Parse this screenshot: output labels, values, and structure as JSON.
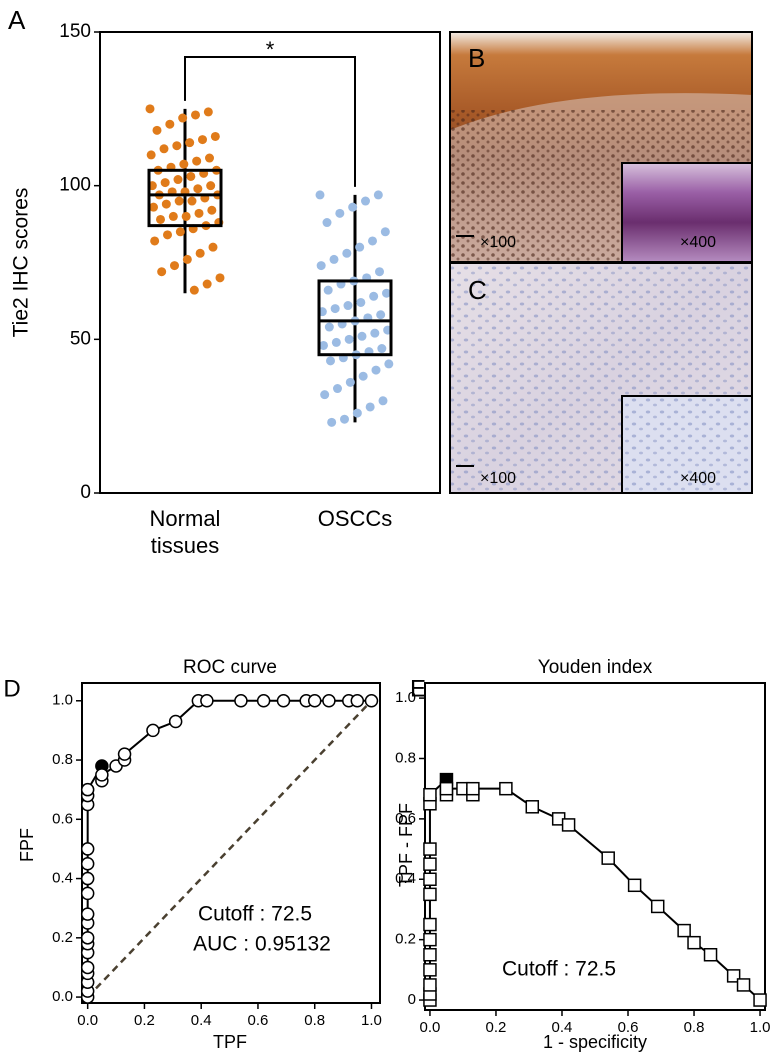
{
  "chart_data": [
    {
      "type": "box",
      "label": "A",
      "ylabel": "Tie2 IHC scores",
      "ylim": [
        0,
        150
      ],
      "yticks": [
        0,
        50,
        100,
        150
      ],
      "categories": [
        "Normal tissues",
        "OSCCs"
      ],
      "annotation": "*",
      "boxes": [
        {
          "color": "#e07b1a",
          "whislo": 65,
          "q1": 87,
          "med": 97,
          "q3": 105,
          "whishi": 125,
          "points": [
            125,
            124,
            123,
            122,
            120,
            118,
            116,
            115,
            114,
            113,
            112,
            110,
            109,
            108,
            107,
            106,
            105,
            105,
            104,
            103,
            102,
            101,
            100,
            100,
            99,
            98,
            98,
            97,
            97,
            96,
            95,
            95,
            94,
            93,
            92,
            91,
            90,
            90,
            89,
            88,
            87,
            86,
            85,
            84,
            82,
            80,
            78,
            76,
            74,
            72,
            70,
            68,
            66
          ]
        },
        {
          "color": "#9bbbe3",
          "whislo": 23,
          "q1": 45,
          "med": 56,
          "q3": 69,
          "whishi": 97,
          "points": [
            97,
            97,
            95,
            93,
            91,
            88,
            85,
            82,
            80,
            78,
            76,
            74,
            72,
            70,
            69,
            68,
            66,
            65,
            64,
            62,
            61,
            60,
            59,
            58,
            57,
            56,
            55,
            54,
            53,
            52,
            51,
            50,
            49,
            48,
            47,
            46,
            45,
            44,
            43,
            42,
            40,
            38,
            36,
            34,
            32,
            30,
            28,
            26,
            24,
            23
          ]
        }
      ]
    },
    {
      "type": "roc",
      "label": "D",
      "title": "ROC curve",
      "xlabel": "TPF",
      "ylabel": "FPF",
      "annotations": [
        "Cutoff : 72.5",
        "AUC : 0.95132"
      ],
      "marker": "circle",
      "highlight_index": 17,
      "xlim": [
        -0.02,
        1.03
      ],
      "ylim": [
        -0.02,
        1.06
      ],
      "xticks": [
        {
          "value": 0,
          "label": "0.0"
        },
        0.2,
        0.4,
        0.6,
        0.8,
        {
          "value": 1,
          "label": "1.0"
        }
      ],
      "yticks": [
        {
          "value": 0,
          "label": "0.0"
        },
        0.2,
        0.4,
        0.6,
        0.8,
        {
          "value": 1,
          "label": "1.0"
        }
      ],
      "x": [
        0,
        0,
        0,
        0,
        0,
        0,
        0,
        0,
        0,
        0,
        0,
        0,
        0,
        0,
        0,
        0,
        0,
        0.05,
        0.05,
        0.05,
        0.1,
        0.13,
        0.13,
        0.23,
        0.31,
        0.39,
        0.42,
        0.54,
        0.62,
        0.69,
        0.77,
        0.8,
        0.85,
        0.92,
        0.95,
        1
      ],
      "y": [
        0,
        0.02,
        0.05,
        0.08,
        0.1,
        0.15,
        0.18,
        0.2,
        0.25,
        0.28,
        0.35,
        0.4,
        0.45,
        0.5,
        0.65,
        0.68,
        0.7,
        0.78,
        0.73,
        0.75,
        0.78,
        0.8,
        0.82,
        0.9,
        0.93,
        1,
        1,
        1,
        1,
        1,
        1,
        1,
        1,
        1,
        1,
        1
      ]
    },
    {
      "type": "youden",
      "label": "E",
      "title": "Youden index",
      "xlabel": "1 - specificity",
      "ylabel": "TPF - FPF",
      "annotations": [
        "Cutoff : 72.5"
      ],
      "marker": "square",
      "highlight_index": 13,
      "xlim": [
        -0.015,
        1.015
      ],
      "ylim": [
        -0.033,
        1.05
      ],
      "xticks": [
        {
          "value": 0,
          "label": "0.0"
        },
        0.2,
        0.4,
        0.6,
        0.8,
        {
          "value": 1,
          "label": "1.0"
        }
      ],
      "yticks": [
        0,
        0.2,
        0.4,
        0.6,
        0.8,
        {
          "value": 1,
          "label": "1.0"
        }
      ],
      "x": [
        0,
        0,
        0,
        0,
        0,
        0,
        0,
        0,
        0,
        0,
        0,
        0,
        0,
        0.05,
        0.05,
        0.05,
        0.1,
        0.13,
        0.13,
        0.23,
        0.31,
        0.39,
        0.42,
        0.54,
        0.62,
        0.69,
        0.77,
        0.8,
        0.85,
        0.92,
        0.95,
        1
      ],
      "y": [
        0,
        0.02,
        0.05,
        0.1,
        0.15,
        0.2,
        0.25,
        0.35,
        0.4,
        0.45,
        0.5,
        0.65,
        0.68,
        0.73,
        0.68,
        0.7,
        0.7,
        0.68,
        0.7,
        0.7,
        0.64,
        0.6,
        0.58,
        0.47,
        0.38,
        0.31,
        0.23,
        0.19,
        0.15,
        0.08,
        0.05,
        0
      ]
    }
  ],
  "images": [
    {
      "label": "B",
      "magnifications": [
        "×100",
        "×400"
      ]
    },
    {
      "label": "C",
      "magnifications": [
        "×100",
        "×400"
      ]
    }
  ]
}
